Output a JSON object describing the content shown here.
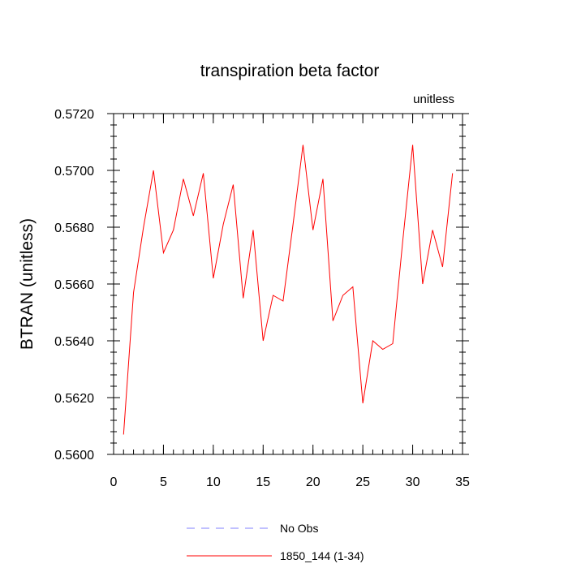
{
  "chart_data": {
    "type": "line",
    "title": "transpiration beta factor",
    "units_label": "unitless",
    "ylabel": "BTRAN  (unitless)",
    "xlabel": "",
    "xlim": [
      0,
      35
    ],
    "ylim": [
      0.56,
      0.572
    ],
    "x_ticks": [
      0,
      5,
      10,
      15,
      20,
      25,
      30,
      35
    ],
    "x_tick_labels": [
      "0",
      "5",
      "10",
      "15",
      "20",
      "25",
      "30",
      "35"
    ],
    "y_ticks": [
      0.56,
      0.562,
      0.564,
      0.566,
      0.568,
      0.57,
      0.572
    ],
    "y_tick_labels": [
      "0.5600",
      "0.5620",
      "0.5640",
      "0.5660",
      "0.5680",
      "0.5700",
      "0.5720"
    ],
    "grid": false,
    "legend": {
      "placement": "bottom",
      "entries": [
        {
          "label": "No Obs",
          "color": "#8080ff",
          "dash": true
        },
        {
          "label": "1850_144 (1-34)",
          "color": "#ff0000",
          "dash": false
        }
      ]
    },
    "series": [
      {
        "name": "1850_144 (1-34)",
        "color": "#ff0000",
        "x": [
          1,
          2,
          3,
          4,
          5,
          6,
          7,
          8,
          9,
          10,
          11,
          12,
          13,
          14,
          15,
          16,
          17,
          18,
          19,
          20,
          21,
          22,
          23,
          24,
          25,
          26,
          27,
          28,
          29,
          30,
          31,
          32,
          33,
          34
        ],
        "values": [
          0.5607,
          0.5657,
          0.568,
          0.57,
          0.5671,
          0.5679,
          0.5697,
          0.5684,
          0.5699,
          0.5662,
          0.5681,
          0.5695,
          0.5655,
          0.5679,
          0.564,
          0.5656,
          0.5654,
          0.5681,
          0.5709,
          0.5679,
          0.5697,
          0.5647,
          0.5656,
          0.5659,
          0.5618,
          0.564,
          0.5637,
          0.5639,
          0.5675,
          0.5709,
          0.566,
          0.5679,
          0.5666,
          0.5699
        ]
      }
    ]
  }
}
